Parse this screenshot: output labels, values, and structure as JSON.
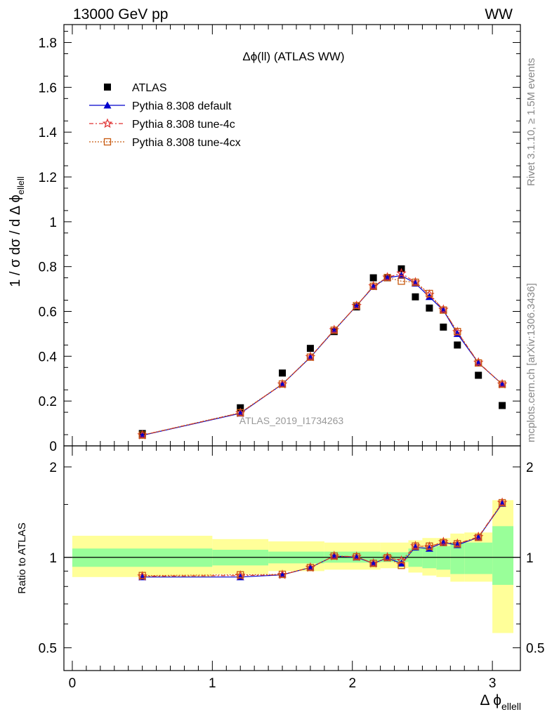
{
  "header": {
    "left": "13000 GeV pp",
    "right": "WW"
  },
  "side_labels": {
    "rivet": "Rivet 3.1.10, ≥ 1.5M events",
    "mcplots": "mcplots.cern.ch [arXiv:1306.3436]"
  },
  "plot_title": "Δϕ(ll) (ATLAS WW)",
  "watermark": "ATLAS_2019_I1734263",
  "legend": [
    {
      "label": "ATLAS",
      "marker": "square",
      "color": "#000000"
    },
    {
      "label": "Pythia 8.308 default",
      "marker": "triangle",
      "color": "#0000cc"
    },
    {
      "label": "Pythia 8.308 tune-4c",
      "marker": "star",
      "color": "#e03030"
    },
    {
      "label": "Pythia 8.308 tune-4cx",
      "marker": "open-square",
      "color": "#c85a10"
    }
  ],
  "chart_data": [
    {
      "type": "scatter",
      "panel": "main",
      "ylabel": "1 / σ  dσ / d Δ ϕ",
      "ylabel_sub": "ellell",
      "ylim": [
        0,
        1.88
      ],
      "xlim": [
        -0.06,
        3.2
      ],
      "y_ticks": [
        0,
        0.2,
        0.4,
        0.6,
        0.8,
        1,
        1.2,
        1.4,
        1.6,
        1.8
      ],
      "y_tick_labels": [
        "0",
        "0.2",
        "0.4",
        "0.6",
        "0.8",
        "1",
        "1.2",
        "1.4",
        "1.6",
        "1.8"
      ],
      "series": [
        {
          "name": "ATLAS",
          "x": [
            0.5,
            1.2,
            1.5,
            1.7,
            1.87,
            2.03,
            2.15,
            2.25,
            2.35,
            2.45,
            2.55,
            2.65,
            2.75,
            2.9,
            3.07
          ],
          "y": [
            0.055,
            0.17,
            0.325,
            0.435,
            0.51,
            0.62,
            0.75,
            0.75,
            0.79,
            0.665,
            0.615,
            0.53,
            0.45,
            0.315,
            0.18
          ]
        },
        {
          "name": "Pythia 8.308 default",
          "x": [
            0.5,
            1.2,
            1.5,
            1.7,
            1.87,
            2.03,
            2.15,
            2.25,
            2.35,
            2.45,
            2.55,
            2.65,
            2.75,
            2.9,
            3.07
          ],
          "y": [
            0.047,
            0.145,
            0.275,
            0.395,
            0.515,
            0.625,
            0.71,
            0.75,
            0.76,
            0.725,
            0.665,
            0.605,
            0.5,
            0.37,
            0.275
          ]
        },
        {
          "name": "Pythia 8.308 tune-4c",
          "x": [
            0.5,
            1.2,
            1.5,
            1.7,
            1.87,
            2.03,
            2.15,
            2.25,
            2.35,
            2.45,
            2.55,
            2.65,
            2.75,
            2.9,
            3.07
          ],
          "y": [
            0.048,
            0.147,
            0.275,
            0.397,
            0.517,
            0.625,
            0.713,
            0.752,
            0.77,
            0.73,
            0.675,
            0.608,
            0.508,
            0.372,
            0.275
          ]
        },
        {
          "name": "Pythia 8.308 tune-4cx",
          "x": [
            0.5,
            1.2,
            1.5,
            1.7,
            1.87,
            2.03,
            2.15,
            2.25,
            2.35,
            2.45,
            2.55,
            2.65,
            2.75,
            2.9,
            3.07
          ],
          "y": [
            0.048,
            0.148,
            0.276,
            0.396,
            0.516,
            0.626,
            0.712,
            0.751,
            0.735,
            0.73,
            0.68,
            0.606,
            0.51,
            0.37,
            0.275
          ]
        }
      ]
    },
    {
      "type": "line",
      "panel": "ratio",
      "ylabel": "Ratio to ATLAS",
      "xlabel": "Δ ϕ",
      "xlabel_sub": "ellell",
      "ylim": [
        0.42,
        2.35
      ],
      "log_y": true,
      "xlim": [
        -0.06,
        3.2
      ],
      "x_ticks": [
        0,
        1,
        2,
        3
      ],
      "x_tick_labels": [
        "0",
        "1",
        "2",
        "3"
      ],
      "y_ticks": [
        0.5,
        1,
        2
      ],
      "y_tick_labels": [
        "0.5",
        "1",
        "2"
      ],
      "bands": {
        "edges": [
          0,
          1,
          1.4,
          1.8,
          2.2,
          2.4,
          2.5,
          2.6,
          2.7,
          2.8,
          3,
          3.15
        ],
        "green_lo": [
          0.93,
          0.94,
          0.955,
          0.96,
          0.965,
          0.93,
          0.92,
          0.91,
          0.88,
          0.88,
          0.81
        ],
        "green_hi": [
          1.07,
          1.06,
          1.045,
          1.045,
          1.04,
          1.07,
          1.08,
          1.09,
          1.12,
          1.12,
          1.27
        ],
        "yellow_lo": [
          0.86,
          0.88,
          0.9,
          0.91,
          0.92,
          0.89,
          0.87,
          0.86,
          0.83,
          0.83,
          0.56
        ],
        "yellow_hi": [
          1.18,
          1.15,
          1.13,
          1.12,
          1.12,
          1.14,
          1.16,
          1.16,
          1.2,
          1.21,
          1.55
        ]
      },
      "series": [
        {
          "name": "Pythia 8.308 default",
          "x": [
            0.5,
            1.2,
            1.5,
            1.7,
            1.87,
            2.03,
            2.15,
            2.25,
            2.35,
            2.45,
            2.55,
            2.65,
            2.75,
            2.9,
            3.07
          ],
          "y": [
            0.86,
            0.86,
            0.875,
            0.925,
            1.01,
            1.0,
            0.955,
            0.995,
            0.955,
            1.08,
            1.07,
            1.12,
            1.1,
            1.165,
            1.51
          ]
        },
        {
          "name": "Pythia 8.308 tune-4c",
          "x": [
            0.5,
            1.2,
            1.5,
            1.7,
            1.87,
            2.03,
            2.15,
            2.25,
            2.35,
            2.45,
            2.55,
            2.65,
            2.75,
            2.9,
            3.07
          ],
          "y": [
            0.865,
            0.87,
            0.875,
            0.925,
            1.01,
            1.005,
            0.955,
            1.0,
            0.975,
            1.09,
            1.085,
            1.125,
            1.11,
            1.17,
            1.52
          ]
        },
        {
          "name": "Pythia 8.308 tune-4cx",
          "x": [
            0.5,
            1.2,
            1.5,
            1.7,
            1.87,
            2.03,
            2.15,
            2.25,
            2.35,
            2.45,
            2.55,
            2.65,
            2.75,
            2.9,
            3.07
          ],
          "y": [
            0.87,
            0.875,
            0.878,
            0.925,
            1.01,
            1.005,
            0.955,
            0.998,
            0.94,
            1.09,
            1.09,
            1.12,
            1.11,
            1.165,
            1.52
          ]
        }
      ]
    }
  ]
}
